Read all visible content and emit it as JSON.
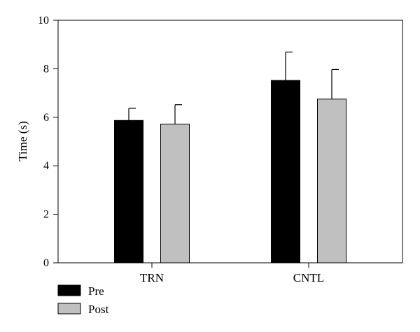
{
  "chart_data": {
    "type": "bar",
    "title": "",
    "xlabel": "",
    "ylabel": "Time (s)",
    "ylim": [
      0,
      10
    ],
    "yticks": [
      0,
      2,
      4,
      6,
      8,
      10
    ],
    "categories": [
      "TRN",
      "CNTL"
    ],
    "series": [
      {
        "name": "Pre",
        "values": [
          5.87,
          7.52
        ],
        "errors": [
          0.5,
          1.17
        ],
        "color": "#000000"
      },
      {
        "name": "Post",
        "values": [
          5.72,
          6.75
        ],
        "errors": [
          0.8,
          1.22
        ],
        "color": "#c0c0c0"
      }
    ],
    "grid": false,
    "legend_position": "bottom-left"
  }
}
